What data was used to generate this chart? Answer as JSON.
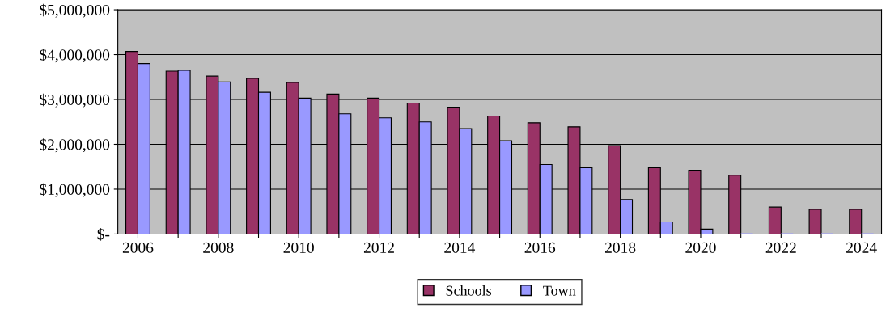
{
  "chart_data": {
    "type": "bar",
    "categories": [
      "2006",
      null,
      "2008",
      null,
      "2010",
      null,
      "2012",
      null,
      "2014",
      null,
      "2016",
      null,
      "2018",
      null,
      "2020",
      null,
      "2022",
      null,
      "2024"
    ],
    "series": [
      {
        "name": "Schools",
        "color": "#993366",
        "values": [
          4070000,
          3630000,
          3520000,
          3470000,
          3380000,
          3120000,
          3030000,
          2920000,
          2830000,
          2630000,
          2480000,
          2390000,
          1970000,
          1480000,
          1420000,
          1310000,
          600000,
          550000,
          550000
        ]
      },
      {
        "name": "Town",
        "color": "#9999ff",
        "values": [
          3800000,
          3650000,
          3390000,
          3160000,
          3030000,
          2680000,
          2590000,
          2500000,
          2350000,
          2080000,
          1550000,
          1480000,
          770000,
          270000,
          110000,
          0,
          0,
          0,
          0
        ]
      }
    ],
    "ylim": [
      0,
      5000000
    ],
    "yticks": [
      {
        "value": 0,
        "label": "$-"
      },
      {
        "value": 1000000,
        "label": "$1,000,000"
      },
      {
        "value": 2000000,
        "label": "$2,000,000"
      },
      {
        "value": 3000000,
        "label": "$3,000,000"
      },
      {
        "value": 4000000,
        "label": "$4,000,000"
      },
      {
        "value": 5000000,
        "label": "$5,000,000"
      }
    ],
    "grid": "y",
    "legend": "bottom"
  }
}
